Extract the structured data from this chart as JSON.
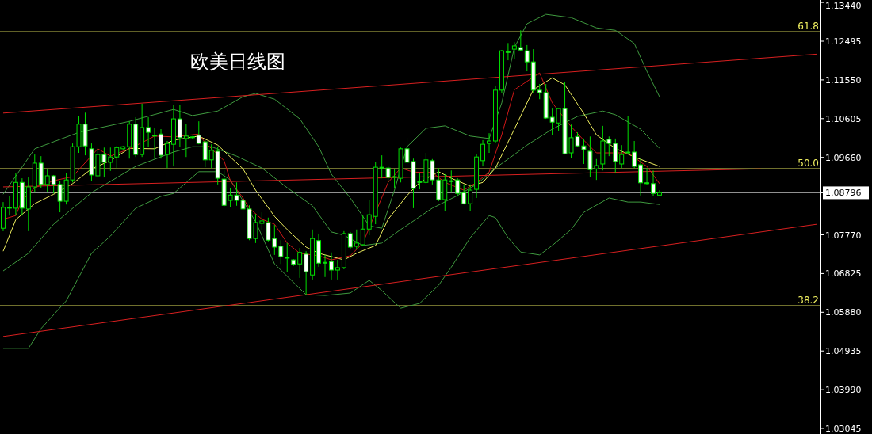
{
  "chart_data": {
    "type": "candlestick",
    "title": "欧美日线图",
    "categories": [
      null,
      null,
      null,
      null,
      null,
      null,
      null,
      null,
      null,
      null,
      null,
      null,
      null,
      null,
      null,
      null,
      null,
      null,
      null,
      null,
      null,
      null,
      null,
      null,
      null,
      null,
      null,
      null,
      null,
      null,
      null,
      null,
      null,
      null,
      null,
      null,
      null,
      null,
      null,
      null,
      null,
      null,
      null,
      null,
      null,
      null,
      null,
      null,
      null,
      null,
      null,
      null,
      null,
      null,
      null,
      null,
      null,
      null,
      null,
      null,
      null,
      null,
      null,
      null,
      null,
      null,
      null,
      null,
      null,
      null,
      null,
      null,
      null,
      null,
      null,
      null,
      null,
      null,
      null,
      null,
      null,
      null,
      null,
      null,
      null,
      null,
      null,
      null,
      null,
      null,
      null,
      null,
      null,
      null,
      null,
      null,
      null,
      null,
      null,
      null,
      null,
      null,
      null,
      null,
      null,
      null,
      null,
      null,
      null,
      null,
      null,
      null,
      null,
      null,
      null,
      null,
      null,
      null,
      null,
      null,
      null,
      null,
      null,
      null,
      null,
      null,
      null,
      null,
      null,
      null
    ],
    "ohlc": [
      [
        1.0793,
        1.0857,
        1.0786,
        1.0844
      ],
      [
        1.0844,
        1.0871,
        1.0824,
        1.0842
      ],
      [
        1.0842,
        1.0927,
        1.0824,
        1.0905
      ],
      [
        1.0905,
        1.0915,
        1.0824,
        1.0842
      ],
      [
        1.084,
        1.0917,
        1.0786,
        1.0894
      ],
      [
        1.0894,
        1.0973,
        1.088,
        1.0952
      ],
      [
        1.0952,
        1.0969,
        1.0892,
        1.09
      ],
      [
        1.09,
        1.0938,
        1.0882,
        1.0921
      ],
      [
        1.0921,
        1.0923,
        1.0878,
        1.09
      ],
      [
        1.09,
        1.0909,
        1.0832,
        1.0859
      ],
      [
        1.0859,
        1.0927,
        1.0851,
        1.0911
      ],
      [
        1.0911,
        1.1,
        1.0905,
        1.0992
      ],
      [
        1.0992,
        1.1066,
        1.0977,
        1.1047
      ],
      [
        1.1047,
        1.1075,
        1.0971,
        1.0994
      ],
      [
        1.0987,
        1.1,
        1.0909,
        1.0923
      ],
      [
        1.0921,
        1.0989,
        1.0917,
        1.0973
      ],
      [
        1.0973,
        1.099,
        1.0917,
        1.0954
      ],
      [
        1.0954,
        1.099,
        1.0933,
        1.0967
      ],
      [
        1.0967,
        1.0994,
        1.0938,
        1.099
      ],
      [
        1.0987,
        1.0994,
        1.0985,
        1.0992
      ],
      [
        1.0992,
        1.1054,
        1.0963,
        1.1047
      ],
      [
        1.1047,
        1.1064,
        1.0967,
        1.0973
      ],
      [
        1.0973,
        1.1097,
        1.0967,
        1.1039
      ],
      [
        1.1039,
        1.1064,
        1.0992,
        1.1027
      ],
      [
        1.102,
        1.1037,
        1.0963,
        1.1019
      ],
      [
        1.1023,
        1.1035,
        1.0963,
        1.0971
      ],
      [
        1.0973,
        1.1006,
        1.094,
        1.1
      ],
      [
        1.0998,
        1.1093,
        1.0944,
        1.106
      ],
      [
        1.106,
        1.1093,
        1.0992,
        1.1014
      ],
      [
        1.1012,
        1.1048,
        1.0967,
        1.1018
      ],
      [
        1.1016,
        1.1018,
        1.1012,
        1.1016
      ],
      [
        1.102,
        1.1054,
        1.0998,
        1.1
      ],
      [
        1.1004,
        1.1008,
        1.0942,
        1.096
      ],
      [
        1.096,
        1.0998,
        1.094,
        1.0983
      ],
      [
        1.0981,
        1.0992,
        1.09,
        1.0915
      ],
      [
        1.0913,
        1.0934,
        1.0846,
        1.0849
      ],
      [
        1.0861,
        1.0892,
        1.0844,
        1.0874
      ],
      [
        1.0874,
        1.0905,
        1.0848,
        1.0861
      ],
      [
        1.0861,
        1.0865,
        1.0811,
        1.084
      ],
      [
        1.084,
        1.0849,
        1.0764,
        1.0768
      ],
      [
        1.0768,
        1.0828,
        1.0757,
        1.0807
      ],
      [
        1.0805,
        1.0832,
        1.079,
        1.0811
      ],
      [
        1.0807,
        1.0819,
        1.0761,
        1.0764
      ],
      [
        1.0768,
        1.0801,
        1.0728,
        1.0747
      ],
      [
        1.0749,
        1.0764,
        1.0706,
        1.0724
      ],
      [
        1.0722,
        1.0757,
        1.0687,
        1.072
      ],
      [
        1.0716,
        1.0718,
        1.0701,
        1.0705
      ],
      [
        1.0706,
        1.0745,
        1.0672,
        1.0734
      ],
      [
        1.073,
        1.0737,
        1.0631,
        1.0687
      ],
      [
        1.0679,
        1.079,
        1.0668,
        1.0768
      ],
      [
        1.0763,
        1.078,
        1.0699,
        1.0708
      ],
      [
        1.071,
        1.0728,
        1.0674,
        1.0709
      ],
      [
        1.0712,
        1.0734,
        1.0668,
        1.0691
      ],
      [
        1.0691,
        1.0716,
        1.0668,
        1.0697
      ],
      [
        1.0697,
        1.0786,
        1.0693,
        1.078
      ],
      [
        1.078,
        1.0784,
        1.0741,
        1.0747
      ],
      [
        1.0749,
        1.079,
        1.0741,
        1.0757
      ],
      [
        1.0753,
        1.0824,
        1.0751,
        1.0791
      ],
      [
        1.0791,
        1.0863,
        1.0776,
        1.0826
      ],
      [
        1.0822,
        1.0954,
        1.0803,
        1.0942
      ],
      [
        1.0942,
        1.0971,
        1.0915,
        1.094
      ],
      [
        1.094,
        1.0946,
        1.0905,
        1.0917
      ],
      [
        1.0917,
        1.0938,
        1.0892,
        1.0919
      ],
      [
        1.0915,
        1.099,
        1.0905,
        1.0987
      ],
      [
        1.0987,
        1.1014,
        1.095,
        1.0954
      ],
      [
        1.0956,
        1.0963,
        1.0842,
        1.089
      ],
      [
        1.0907,
        1.0929,
        1.0888,
        1.0905
      ],
      [
        1.0905,
        1.0977,
        1.0902,
        1.096
      ],
      [
        1.0958,
        1.0962,
        1.09,
        1.0911
      ],
      [
        1.0911,
        1.094,
        1.0859,
        1.0863
      ],
      [
        1.0863,
        1.0925,
        1.0834,
        1.0911
      ],
      [
        1.0909,
        1.0934,
        1.088,
        1.0907
      ],
      [
        1.0911,
        1.0915,
        1.0873,
        1.0878
      ],
      [
        1.088,
        1.09,
        1.0851,
        1.0853
      ],
      [
        1.0853,
        1.09,
        1.0834,
        1.0886
      ],
      [
        1.0888,
        1.0973,
        1.0867,
        1.0967
      ],
      [
        1.0958,
        1.1008,
        1.0944,
        1.0998
      ],
      [
        1.1,
        1.1025,
        1.0977,
        1.1006
      ],
      [
        1.1006,
        1.1141,
        1.1002,
        1.113
      ],
      [
        1.113,
        1.1228,
        1.1124,
        1.1226
      ],
      [
        1.1224,
        1.1245,
        1.1203,
        1.1222
      ],
      [
        1.123,
        1.1247,
        1.1205,
        1.1238
      ],
      [
        1.1234,
        1.1276,
        1.1226,
        1.1228
      ],
      [
        1.1226,
        1.124,
        1.1176,
        1.1199
      ],
      [
        1.1199,
        1.123,
        1.1122,
        1.113
      ],
      [
        1.113,
        1.1145,
        1.1108,
        1.1124
      ],
      [
        1.1124,
        1.1145,
        1.106,
        1.1062
      ],
      [
        1.1064,
        1.1085,
        1.1021,
        1.1052
      ],
      [
        1.105,
        1.1087,
        1.1031,
        1.1085
      ],
      [
        1.1085,
        1.1151,
        1.0973,
        1.0975
      ],
      [
        1.0977,
        1.1046,
        1.0965,
        1.1014
      ],
      [
        1.1017,
        1.1027,
        1.0992,
        1.0994
      ],
      [
        1.0994,
        1.1012,
        1.095,
        1.0985
      ],
      [
        1.0981,
        1.1017,
        1.0919,
        1.0936
      ],
      [
        1.0938,
        1.0962,
        1.0911,
        1.0946
      ],
      [
        1.095,
        1.1043,
        1.0934,
        1.1006
      ],
      [
        1.101,
        1.1017,
        1.0969,
        1.1
      ],
      [
        1.1,
        1.1012,
        1.0929,
        1.0956
      ],
      [
        1.095,
        1.0996,
        1.094,
        1.0973
      ],
      [
        1.0977,
        1.1066,
        1.0975,
        1.0979
      ],
      [
        1.0979,
        1.1006,
        1.094,
        1.0944
      ],
      [
        1.0948,
        1.0963,
        1.0873,
        1.0904
      ],
      [
        1.0904,
        1.094,
        1.09,
        1.0902
      ],
      [
        1.0902,
        1.0934,
        1.0871,
        1.0878
      ],
      [
        1.0874,
        1.0886,
        1.0873,
        1.088
      ],
      null,
      null,
      null,
      null,
      null,
      null,
      null,
      null,
      null,
      null,
      null,
      null,
      null,
      null,
      null,
      null,
      null,
      null,
      null,
      null,
      null,
      null,
      null,
      null,
      null
    ],
    "series": [
      {
        "type": "line",
        "color": "#3f9a3f",
        "values": [
          1.0876,
          null,
          null,
          null,
          null,
          1.0987,
          null,
          null,
          null,
          null,
          null,
          null,
          1.1027,
          null,
          null,
          null,
          null,
          null,
          null,
          null,
          1.1054,
          null,
          null,
          null,
          null,
          null,
          null,
          1.1083,
          null,
          null,
          1.1068,
          null,
          null,
          null,
          1.1079,
          null,
          null,
          null,
          1.1114,
          null,
          1.1122,
          null,
          null,
          1.1108,
          null,
          null,
          null,
          1.106,
          null,
          null,
          1.0992,
          null,
          1.0925,
          null,
          null,
          1.0867,
          null,
          null,
          1.0799,
          null,
          1.0793,
          null,
          1.0886,
          null,
          1.0992,
          null,
          null,
          1.1037,
          null,
          null,
          1.1043,
          null,
          null,
          null,
          1.1018,
          null,
          null,
          1.1012,
          null,
          1.1099,
          null,
          1.1234,
          null,
          1.1292,
          null,
          null,
          1.1315,
          null,
          null,
          null,
          1.1307,
          null,
          null,
          null,
          1.1282,
          null,
          null,
          1.1276,
          null,
          null,
          1.1244,
          null,
          1.1176,
          null,
          1.1114,
          null,
          null,
          null,
          null,
          null,
          null,
          null,
          null,
          null,
          null,
          null,
          null,
          null,
          null,
          null,
          null,
          null,
          null,
          null,
          null,
          null,
          null,
          null,
          null,
          null
        ]
      },
      {
        "type": "line",
        "color": "#3f9a3f",
        "values": [
          1.0689,
          null,
          null,
          null,
          1.0732,
          null,
          null,
          null,
          1.0803,
          null,
          null,
          null,
          null,
          null,
          1.088,
          null,
          null,
          null,
          null,
          null,
          null,
          1.0944,
          null,
          null,
          null,
          null,
          null,
          1.0979,
          null,
          null,
          1.0992,
          null,
          null,
          1.0992,
          null,
          null,
          null,
          1.0969,
          null,
          null,
          null,
          1.094,
          null,
          null,
          null,
          1.0892,
          null,
          null,
          null,
          1.0848,
          null,
          null,
          1.0784,
          null,
          1.0776,
          null,
          null,
          1.0751,
          null,
          null,
          1.0757,
          null,
          null,
          1.079,
          null,
          null,
          null,
          null,
          1.0842,
          null,
          null,
          null,
          1.0873,
          null,
          null,
          1.09,
          null,
          null,
          1.094,
          null,
          null,
          1.0973,
          null,
          1.0996,
          null,
          null,
          null,
          1.1035,
          null,
          null,
          null,
          1.1066,
          null,
          null,
          null,
          1.1079,
          null,
          1.107,
          null,
          null,
          null,
          1.1035,
          null,
          null,
          1.0988,
          null,
          null,
          null,
          null,
          null,
          null,
          null,
          null,
          null,
          null,
          null,
          null,
          null,
          null,
          null,
          null,
          null,
          null,
          null,
          null,
          null,
          null,
          null,
          null,
          null
        ]
      },
      {
        "type": "line",
        "color": "#3f9a3f",
        "values": [
          1.05,
          null,
          null,
          null,
          1.05,
          null,
          1.0548,
          null,
          null,
          null,
          1.0616,
          null,
          null,
          null,
          1.0732,
          null,
          null,
          1.0774,
          null,
          null,
          null,
          1.0842,
          null,
          null,
          null,
          1.0871,
          null,
          1.0878,
          null,
          null,
          null,
          1.0931,
          null,
          null,
          1.0931,
          null,
          1.0911,
          null,
          null,
          null,
          1.0809,
          null,
          null,
          1.0706,
          null,
          null,
          null,
          null,
          1.0631,
          null,
          null,
          1.0629,
          null,
          null,
          null,
          1.0635,
          null,
          null,
          1.0666,
          null,
          1.0641,
          null,
          null,
          1.0598,
          null,
          null,
          1.061,
          null,
          null,
          1.0654,
          null,
          1.0698,
          null,
          null,
          1.077,
          null,
          null,
          1.0824,
          1.0819,
          null,
          1.077,
          null,
          1.0735,
          null,
          null,
          1.0728,
          null,
          1.0751,
          null,
          null,
          1.079,
          null,
          1.0832,
          null,
          null,
          null,
          1.0867,
          null,
          null,
          1.0857,
          null,
          1.0857,
          null,
          null,
          1.0851,
          null,
          null,
          null,
          null,
          null,
          null,
          null,
          null,
          null,
          null,
          null,
          null,
          null,
          null,
          null,
          null,
          null,
          null,
          null,
          null,
          null,
          null,
          null,
          null,
          null
        ]
      },
      {
        "type": "line",
        "color": "#f0f060",
        "values": [
          1.0737,
          null,
          1.0814,
          null,
          null,
          1.0853,
          null,
          null,
          1.0876,
          null,
          null,
          1.0902,
          null,
          null,
          1.0938,
          null,
          null,
          1.0958,
          null,
          null,
          1.0988,
          null,
          null,
          null,
          1.0987,
          null,
          null,
          1.1008,
          null,
          null,
          null,
          1.1018,
          null,
          null,
          1.0996,
          null,
          null,
          null,
          1.0938,
          null,
          1.0886,
          null,
          null,
          1.0822,
          null,
          1.079,
          null,
          null,
          1.0747,
          null,
          1.0732,
          null,
          null,
          null,
          1.0716,
          null,
          1.0732,
          null,
          null,
          1.0751,
          null,
          1.0815,
          null,
          null,
          1.0873,
          null,
          1.0905,
          null,
          null,
          1.0931,
          null,
          1.0915,
          null,
          null,
          1.0896,
          null,
          1.0905,
          null,
          1.094,
          null,
          null,
          1.1035,
          null,
          null,
          1.1131,
          null,
          null,
          1.116,
          null,
          1.1143,
          null,
          null,
          1.1073,
          null,
          1.1021,
          null,
          null,
          1.0988,
          null,
          null,
          1.0967,
          null,
          null,
          null,
          1.0944,
          null,
          null,
          null,
          null,
          null,
          null,
          null,
          null,
          null,
          null,
          null,
          null,
          null,
          null,
          null,
          null,
          null,
          null,
          null,
          null,
          null,
          null,
          null,
          null,
          null
        ]
      },
      {
        "type": "line",
        "color": "#d01818",
        "values": [
          1.0815,
          null,
          1.0824,
          1.0861,
          null,
          1.0892,
          null,
          null,
          1.0909,
          null,
          null,
          1.0919,
          null,
          null,
          null,
          1.0987,
          null,
          1.0969,
          null,
          null,
          1.0987,
          null,
          1.1002,
          null,
          1.1018,
          null,
          null,
          1.1016,
          null,
          null,
          null,
          1.1023,
          1.1002,
          null,
          null,
          1.0958,
          1.0909,
          null,
          1.0867,
          1.0842,
          null,
          1.0815,
          null,
          1.0803,
          null,
          1.0757,
          null,
          1.0732,
          null,
          null,
          1.0726,
          null,
          1.0716,
          null,
          null,
          1.0726,
          null,
          1.0757,
          null,
          null,
          null,
          1.0905,
          null,
          1.094,
          null,
          1.093,
          null,
          null,
          1.0929,
          null,
          1.0905,
          null,
          null,
          1.0886,
          null,
          1.0905,
          null,
          1.093,
          null,
          1.1021,
          null,
          1.1131,
          null,
          null,
          null,
          1.1172,
          null,
          1.1099,
          null,
          null,
          1.1041,
          null,
          1.1008,
          null,
          1.0977,
          null,
          null,
          1.0977,
          null,
          1.0977,
          null,
          null,
          1.0944,
          null,
          1.0902,
          null,
          null,
          null,
          null,
          null,
          null,
          null,
          null,
          null,
          null,
          null,
          null,
          null,
          null,
          null,
          null,
          null,
          null,
          null,
          null,
          null,
          null,
          null,
          null,
          null
        ]
      },
      {
        "type": "line",
        "color": "#d82020",
        "values": [
          1.1074,
          null,
          null,
          null,
          null,
          null,
          null,
          null,
          null,
          null,
          null,
          null,
          null,
          null,
          null,
          null,
          null,
          null,
          null,
          null,
          null,
          null,
          null,
          null,
          null,
          null,
          null,
          null,
          null,
          null,
          null,
          null,
          null,
          null,
          null,
          null,
          null,
          null,
          null,
          null,
          null,
          null,
          null,
          null,
          null,
          null,
          null,
          null,
          null,
          null,
          null,
          null,
          null,
          null,
          null,
          null,
          null,
          null,
          null,
          null,
          null,
          null,
          null,
          null,
          null,
          null,
          null,
          null,
          null,
          null,
          null,
          null,
          null,
          null,
          null,
          null,
          null,
          null,
          null,
          null,
          null,
          null,
          null,
          null,
          null,
          null,
          null,
          null,
          null,
          null,
          null,
          null,
          null,
          null,
          null,
          null,
          null,
          null,
          null,
          null,
          null,
          null,
          null,
          null,
          null,
          null,
          null,
          null,
          null,
          null,
          null,
          null,
          null,
          null,
          null,
          null,
          null,
          null,
          null,
          null,
          null,
          null,
          null,
          null,
          null,
          null,
          null,
          null,
          null,
          1.1218
        ]
      },
      {
        "type": "line",
        "color": "#d82020",
        "values": [
          1.0894,
          null,
          null,
          null,
          null,
          null,
          null,
          null,
          null,
          null,
          null,
          null,
          null,
          null,
          null,
          null,
          null,
          null,
          null,
          null,
          null,
          null,
          null,
          null,
          null,
          null,
          null,
          null,
          null,
          null,
          null,
          null,
          null,
          null,
          null,
          null,
          null,
          null,
          null,
          null,
          null,
          null,
          null,
          null,
          null,
          null,
          null,
          null,
          null,
          null,
          null,
          null,
          null,
          null,
          null,
          null,
          null,
          null,
          null,
          null,
          null,
          null,
          null,
          null,
          null,
          null,
          null,
          null,
          null,
          null,
          null,
          null,
          null,
          null,
          null,
          null,
          null,
          null,
          null,
          null,
          null,
          null,
          null,
          null,
          null,
          null,
          null,
          null,
          null,
          null,
          null,
          null,
          null,
          null,
          null,
          null,
          null,
          null,
          null,
          null,
          null,
          null,
          null,
          null,
          null,
          null,
          null,
          null,
          null,
          null,
          null,
          null,
          null,
          null,
          null,
          null,
          null,
          null,
          null,
          null,
          1.0938,
          null,
          null,
          null,
          null,
          null,
          null,
          null,
          null,
          null
        ]
      },
      {
        "type": "line",
        "color": "#d82020",
        "values": [
          1.0529,
          null,
          null,
          null,
          null,
          null,
          null,
          null,
          null,
          null,
          null,
          null,
          null,
          null,
          null,
          null,
          null,
          null,
          null,
          null,
          null,
          null,
          null,
          null,
          null,
          null,
          null,
          null,
          null,
          null,
          null,
          null,
          null,
          null,
          null,
          null,
          null,
          null,
          null,
          null,
          null,
          null,
          null,
          null,
          null,
          null,
          null,
          null,
          null,
          null,
          null,
          null,
          null,
          null,
          null,
          null,
          null,
          null,
          null,
          null,
          null,
          null,
          null,
          null,
          null,
          null,
          null,
          null,
          null,
          null,
          null,
          null,
          null,
          null,
          null,
          null,
          null,
          null,
          null,
          null,
          null,
          null,
          null,
          null,
          null,
          null,
          null,
          null,
          null,
          null,
          null,
          null,
          null,
          null,
          null,
          null,
          null,
          null,
          null,
          null,
          null,
          null,
          null,
          null,
          null,
          null,
          null,
          null,
          null,
          null,
          null,
          null,
          null,
          null,
          null,
          null,
          null,
          null,
          null,
          null,
          null,
          null,
          null,
          null,
          null,
          null,
          null,
          null,
          null,
          1.0803
        ]
      }
    ],
    "ylim": [
      1.0291,
      1.135
    ],
    "yticks": [
      {
        "value": 1.1344,
        "label": "1.13440"
      },
      {
        "value": 1.12495,
        "label": "1.12495"
      },
      {
        "value": 1.1155,
        "label": "1.11550"
      },
      {
        "value": 1.10605,
        "label": "1.10605"
      },
      {
        "value": 1.0966,
        "label": "1.09660"
      },
      {
        "value": 1.08796,
        "label": "1.08796"
      },
      {
        "value": 1.0777,
        "label": "1.07770"
      },
      {
        "value": 1.06825,
        "label": "1.06825"
      },
      {
        "value": 1.0588,
        "label": "1.05880"
      },
      {
        "value": 1.04935,
        "label": "1.04935"
      },
      {
        "value": 1.0399,
        "label": "1.03990"
      },
      {
        "value": 1.03045,
        "label": "1.03045"
      }
    ],
    "ref_lines": [
      {
        "axis": "y",
        "value": 1.12725,
        "color": "#f0f060"
      },
      {
        "axis": "y",
        "value": 1.09383,
        "color": "#f0f060"
      },
      {
        "axis": "y",
        "value": 1.0604,
        "color": "#f0f060"
      },
      {
        "axis": "y",
        "value": 1.08796,
        "color": "#a0a0a0"
      }
    ],
    "annotations": [
      {
        "text": "61.8",
        "y": 1.12725
      },
      {
        "text": "50.0",
        "y": 1.09383
      },
      {
        "text": "38.2",
        "y": 1.0604
      }
    ],
    "tick_labels": "y"
  }
}
